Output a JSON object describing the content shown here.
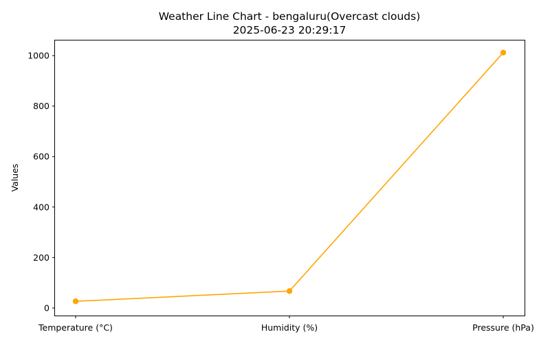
{
  "chart_data": {
    "type": "line",
    "title": "Weather Line Chart - bengaluru(Overcast clouds)",
    "subtitle": "2025-06-23 20:29:17",
    "xlabel": "",
    "ylabel": "Values",
    "categories": [
      "Temperature (°C)",
      "Humidity (%)",
      "Pressure (hPa)"
    ],
    "series": [
      {
        "values": [
          26.5,
          67,
          1012
        ],
        "color": "#FFA500",
        "marker": "circle"
      }
    ],
    "ylim": [
      -30,
      1060
    ],
    "yticks": [
      0,
      200,
      400,
      600,
      800,
      1000
    ],
    "grid": false,
    "legend": "none"
  }
}
